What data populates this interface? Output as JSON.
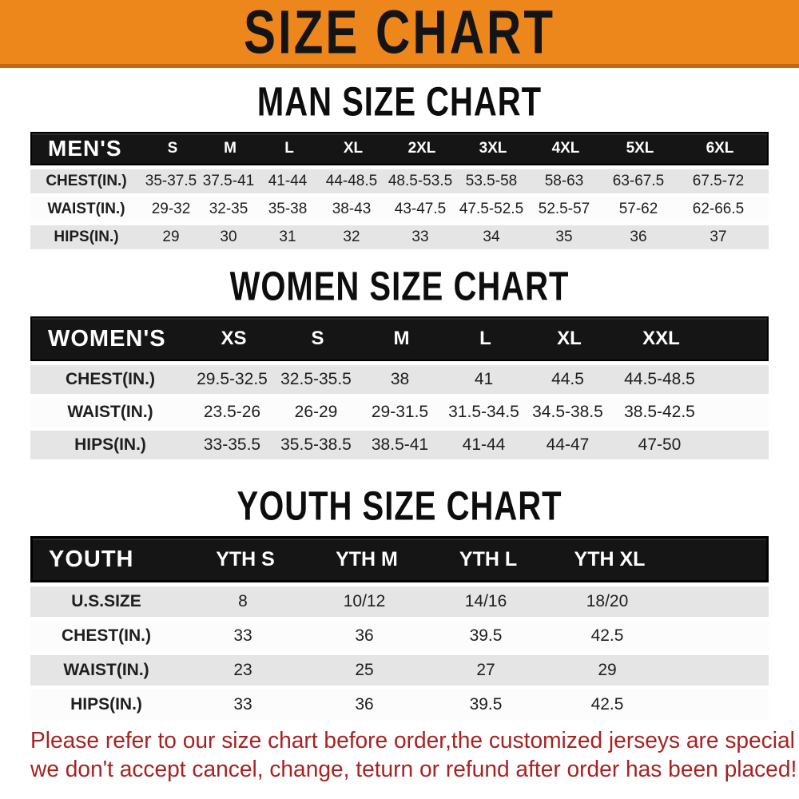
{
  "banner": {
    "title": "SIZE CHART",
    "bg_color": "#ED871C",
    "border_color": "#C1690E",
    "text_color": "#141414"
  },
  "sections": [
    {
      "title": "MAN SIZE CHART",
      "header_label": "MEN'S",
      "columns": [
        "S",
        "M",
        "L",
        "XL",
        "2XL",
        "3XL",
        "4XL",
        "5XL",
        "6XL"
      ],
      "rows": [
        {
          "label": "CHEST(IN.)",
          "values": [
            "35-37.5",
            "37.5-41",
            "41-44",
            "44-48.5",
            "48.5-53.5",
            "53.5-58",
            "58-63",
            "63-67.5",
            "67.5-72"
          ]
        },
        {
          "label": "WAIST(IN.)",
          "values": [
            "29-32",
            "32-35",
            "35-38",
            "38-43",
            "43-47.5",
            "47.5-52.5",
            "52.5-57",
            "57-62",
            "62-66.5"
          ]
        },
        {
          "label": "HIPS(IN.)",
          "values": [
            "29",
            "30",
            "31",
            "32",
            "33",
            "34",
            "35",
            "36",
            "37"
          ]
        }
      ]
    },
    {
      "title": "WOMEN SIZE CHART",
      "header_label": "WOMEN'S",
      "columns": [
        "XS",
        "S",
        "M",
        "L",
        "XL",
        "XXL"
      ],
      "rows": [
        {
          "label": "CHEST(IN.)",
          "values": [
            "29.5-32.5",
            "32.5-35.5",
            "38",
            "41",
            "44.5",
            "44.5-48.5"
          ]
        },
        {
          "label": "WAIST(IN.)",
          "values": [
            "23.5-26",
            "26-29",
            "29-31.5",
            "31.5-34.5",
            "34.5-38.5",
            "38.5-42.5"
          ]
        },
        {
          "label": "HIPS(IN.)",
          "values": [
            "33-35.5",
            "35.5-38.5",
            "38.5-41",
            "41-44",
            "44-47",
            "47-50"
          ]
        }
      ]
    },
    {
      "title": "YOUTH SIZE CHART",
      "header_label": "YOUTH",
      "columns": [
        "YTH S",
        "YTH M",
        "YTH L",
        "YTH XL"
      ],
      "rows": [
        {
          "label": "U.S.SIZE",
          "values": [
            "8",
            "10/12",
            "14/16",
            "18/20"
          ]
        },
        {
          "label": "CHEST(IN.)",
          "values": [
            "33",
            "36",
            "39.5",
            "42.5"
          ]
        },
        {
          "label": "WAIST(IN.)",
          "values": [
            "23",
            "25",
            "27",
            "29"
          ]
        },
        {
          "label": "HIPS(IN.)",
          "values": [
            "33",
            "36",
            "39.5",
            "42.5"
          ]
        }
      ]
    }
  ],
  "disclaimer": {
    "line1": "Please refer to our size chart before order,the customized jerseys are special products,",
    "line2": "we don't accept cancel, change, teturn or refund after order has been placed!",
    "text_color": "#A82222"
  },
  "table_colors": {
    "header_bg": "#151515",
    "header_text": "#ffffff",
    "row_gray": "#E5E5E5",
    "row_white": "#FCFCFC"
  }
}
